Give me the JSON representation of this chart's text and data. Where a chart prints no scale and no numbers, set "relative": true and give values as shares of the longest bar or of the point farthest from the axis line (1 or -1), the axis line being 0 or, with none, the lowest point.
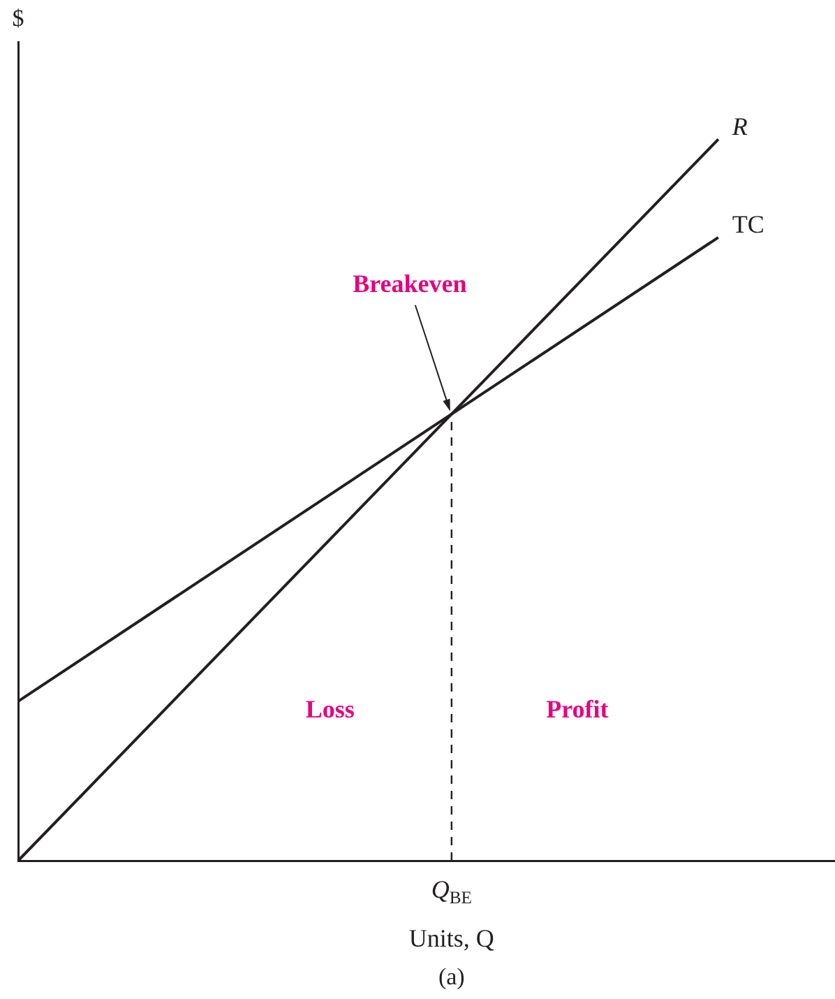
{
  "chart_data": {
    "type": "line",
    "relative": true,
    "ylabel": "$",
    "xlabel": "Units, Q",
    "categories": [
      null,
      null,
      null,
      null,
      null,
      null,
      null,
      null
    ],
    "series": [
      {
        "name": "R",
        "color": "#231f20",
        "values": [
          0,
          null,
          null,
          null,
          null,
          null,
          1,
          null
        ]
      },
      {
        "name": "TC",
        "color": "#231f20",
        "values": [
          0.221,
          null,
          null,
          null,
          null,
          null,
          0.864,
          null
        ]
      }
    ],
    "annotations": [
      "Q$_{BE}$",
      "Breakeven",
      "Loss",
      "Profit",
      "(a)"
    ],
    "grid": false,
    "legend": false,
    "marker": "none",
    "line_style": "solid"
  }
}
